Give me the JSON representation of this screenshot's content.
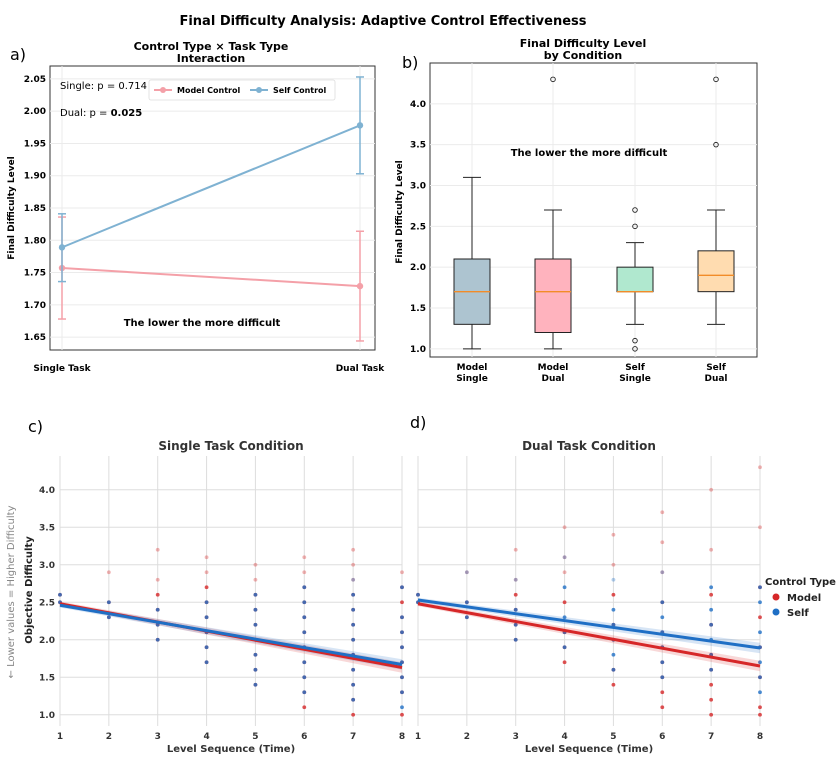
{
  "figure": {
    "title": "Final Difficulty Analysis: Adaptive Control Effectiveness",
    "panel_labels": [
      "a)",
      "b)",
      "c)",
      "d)"
    ]
  },
  "colors": {
    "model_line": "#f4a0a8",
    "self_line": "#7fb2d2",
    "model_scatter": "#d62728",
    "self_scatter": "#1f6fc5",
    "box_model_single": "#adc4d0",
    "box_model_dual": "#ffb3be",
    "box_self_single": "#b0e8cf",
    "box_self_dual": "#ffdcb0",
    "median": "#f28c28"
  },
  "chart_data": [
    {
      "id": "a",
      "type": "line",
      "title": "Control Type × Task Type\nInteraction",
      "xlabel": "",
      "ylabel": "Final Difficulty Level",
      "categories": [
        "Single Task",
        "Dual Task"
      ],
      "ylim": [
        1.63,
        2.07
      ],
      "yticks": [
        1.65,
        1.7,
        1.75,
        1.8,
        1.85,
        1.9,
        1.95,
        2.0,
        2.05
      ],
      "series": [
        {
          "name": "Model Control",
          "values": [
            1.757,
            1.729
          ],
          "err_low": [
            1.678,
            1.644
          ],
          "err_high": [
            1.836,
            1.814
          ]
        },
        {
          "name": "Self Control",
          "values": [
            1.789,
            1.978
          ],
          "err_low": [
            1.736,
            1.903
          ],
          "err_high": [
            1.841,
            2.053
          ]
        }
      ],
      "annotations": {
        "single_p": "Single: p = 0.714",
        "dual_prefix": "Dual: p = ",
        "dual_value": "0.025",
        "note": "The lower the more difficult"
      },
      "legend": "top-center"
    },
    {
      "id": "b",
      "type": "box",
      "title": "Final Difficulty Level\nby Condition",
      "ylabel": "Final Difficulty Level",
      "ylim": [
        0.9,
        4.5
      ],
      "yticks": [
        1.0,
        1.5,
        2.0,
        2.5,
        3.0,
        3.5,
        4.0
      ],
      "categories": [
        "Model\nSingle",
        "Model\nDual",
        "Self\nSingle",
        "Self\nDual"
      ],
      "boxes": [
        {
          "q1": 1.3,
          "median": 1.7,
          "q3": 2.1,
          "whisker_low": 1.0,
          "whisker_high": 3.1,
          "outliers": []
        },
        {
          "q1": 1.2,
          "median": 1.7,
          "q3": 2.1,
          "whisker_low": 1.0,
          "whisker_high": 2.7,
          "outliers": [
            4.3
          ]
        },
        {
          "q1": 1.7,
          "median": 1.7,
          "q3": 2.0,
          "whisker_low": 1.3,
          "whisker_high": 2.3,
          "outliers": [
            2.7,
            2.5,
            1.1,
            1.0
          ]
        },
        {
          "q1": 1.7,
          "median": 1.9,
          "q3": 2.2,
          "whisker_low": 1.3,
          "whisker_high": 2.7,
          "outliers": [
            4.3,
            3.5
          ]
        }
      ],
      "annotation": "The lower the more difficult"
    },
    {
      "id": "c",
      "type": "scatter",
      "title": "Single Task Condition",
      "xlabel": "Level Sequence (Time)",
      "ylabel": "Objective Difficulty",
      "outer_ylabel": "← Lower values = Higher Difficulty",
      "xlim": [
        1,
        8
      ],
      "ylim": [
        0.85,
        4.45
      ],
      "xticks": [
        1,
        2,
        3,
        4,
        5,
        6,
        7,
        8
      ],
      "yticks": [
        1.0,
        1.5,
        2.0,
        2.5,
        3.0,
        3.5,
        4.0
      ],
      "trend": {
        "Model": {
          "start": 2.48,
          "end": 1.63
        },
        "Self": {
          "start": 2.46,
          "end": 1.67
        }
      },
      "points": {
        "Model": [
          [
            1,
            2.6
          ],
          [
            1,
            2.5
          ],
          [
            2,
            2.9
          ],
          [
            2,
            2.5
          ],
          [
            2,
            2.3
          ],
          [
            3,
            3.2
          ],
          [
            3,
            2.8
          ],
          [
            3,
            2.6
          ],
          [
            3,
            2.4
          ],
          [
            3,
            2.2
          ],
          [
            3,
            2.0
          ],
          [
            4,
            3.1
          ],
          [
            4,
            2.9
          ],
          [
            4,
            2.7
          ],
          [
            4,
            2.5
          ],
          [
            4,
            2.3
          ],
          [
            4,
            2.1
          ],
          [
            4,
            1.9
          ],
          [
            4,
            1.7
          ],
          [
            5,
            3.0
          ],
          [
            5,
            2.8
          ],
          [
            5,
            2.6
          ],
          [
            5,
            2.4
          ],
          [
            5,
            2.2
          ],
          [
            5,
            2.0
          ],
          [
            5,
            1.8
          ],
          [
            5,
            1.6
          ],
          [
            5,
            1.4
          ],
          [
            6,
            3.1
          ],
          [
            6,
            2.9
          ],
          [
            6,
            2.7
          ],
          [
            6,
            2.5
          ],
          [
            6,
            2.3
          ],
          [
            6,
            2.1
          ],
          [
            6,
            1.9
          ],
          [
            6,
            1.7
          ],
          [
            6,
            1.5
          ],
          [
            6,
            1.3
          ],
          [
            6,
            1.1
          ],
          [
            7,
            3.2
          ],
          [
            7,
            3.0
          ],
          [
            7,
            2.8
          ],
          [
            7,
            2.6
          ],
          [
            7,
            2.4
          ],
          [
            7,
            2.2
          ],
          [
            7,
            2.0
          ],
          [
            7,
            1.8
          ],
          [
            7,
            1.6
          ],
          [
            7,
            1.4
          ],
          [
            7,
            1.2
          ],
          [
            7,
            1.0
          ],
          [
            8,
            2.9
          ],
          [
            8,
            2.7
          ],
          [
            8,
            2.5
          ],
          [
            8,
            2.3
          ],
          [
            8,
            2.1
          ],
          [
            8,
            1.9
          ],
          [
            8,
            1.7
          ],
          [
            8,
            1.5
          ],
          [
            8,
            1.3
          ],
          [
            8,
            1.0
          ]
        ],
        "Self": [
          [
            1,
            2.6
          ],
          [
            1,
            2.5
          ],
          [
            2,
            2.5
          ],
          [
            2,
            2.3
          ],
          [
            3,
            2.4
          ],
          [
            3,
            2.2
          ],
          [
            3,
            2.0
          ],
          [
            4,
            2.5
          ],
          [
            4,
            2.3
          ],
          [
            4,
            2.1
          ],
          [
            4,
            1.9
          ],
          [
            4,
            1.7
          ],
          [
            5,
            2.6
          ],
          [
            5,
            2.4
          ],
          [
            5,
            2.2
          ],
          [
            5,
            2.0
          ],
          [
            5,
            1.8
          ],
          [
            5,
            1.6
          ],
          [
            5,
            1.4
          ],
          [
            6,
            2.7
          ],
          [
            6,
            2.5
          ],
          [
            6,
            2.3
          ],
          [
            6,
            2.1
          ],
          [
            6,
            1.9
          ],
          [
            6,
            1.7
          ],
          [
            6,
            1.5
          ],
          [
            6,
            1.3
          ],
          [
            7,
            2.8
          ],
          [
            7,
            2.6
          ],
          [
            7,
            2.4
          ],
          [
            7,
            2.2
          ],
          [
            7,
            2.0
          ],
          [
            7,
            1.8
          ],
          [
            7,
            1.6
          ],
          [
            7,
            1.4
          ],
          [
            7,
            1.2
          ],
          [
            8,
            2.7
          ],
          [
            8,
            2.3
          ],
          [
            8,
            2.1
          ],
          [
            8,
            1.9
          ],
          [
            8,
            1.7
          ],
          [
            8,
            1.5
          ],
          [
            8,
            1.3
          ],
          [
            8,
            1.1
          ]
        ]
      }
    },
    {
      "id": "d",
      "type": "scatter",
      "title": "Dual Task Condition",
      "xlabel": "Level Sequence (Time)",
      "ylabel": "",
      "xlim": [
        1,
        8
      ],
      "ylim": [
        0.85,
        4.45
      ],
      "xticks": [
        1,
        2,
        3,
        4,
        5,
        6,
        7,
        8
      ],
      "yticks": [
        1.0,
        1.5,
        2.0,
        2.5,
        3.0,
        3.5,
        4.0
      ],
      "trend": {
        "Model": {
          "start": 2.48,
          "end": 1.65
        },
        "Self": {
          "start": 2.53,
          "end": 1.89
        }
      },
      "points": {
        "Model": [
          [
            1,
            2.6
          ],
          [
            1,
            2.5
          ],
          [
            2,
            2.9
          ],
          [
            2,
            2.5
          ],
          [
            2,
            2.3
          ],
          [
            3,
            3.2
          ],
          [
            3,
            2.8
          ],
          [
            3,
            2.6
          ],
          [
            3,
            2.4
          ],
          [
            3,
            2.2
          ],
          [
            3,
            2.0
          ],
          [
            4,
            3.5
          ],
          [
            4,
            3.1
          ],
          [
            4,
            2.9
          ],
          [
            4,
            2.5
          ],
          [
            4,
            2.1
          ],
          [
            4,
            1.9
          ],
          [
            4,
            1.7
          ],
          [
            5,
            3.4
          ],
          [
            5,
            3.0
          ],
          [
            5,
            2.6
          ],
          [
            5,
            2.2
          ],
          [
            5,
            2.0
          ],
          [
            5,
            1.6
          ],
          [
            5,
            1.4
          ],
          [
            6,
            3.7
          ],
          [
            6,
            3.3
          ],
          [
            6,
            2.9
          ],
          [
            6,
            2.5
          ],
          [
            6,
            2.1
          ],
          [
            6,
            1.9
          ],
          [
            6,
            1.7
          ],
          [
            6,
            1.5
          ],
          [
            6,
            1.3
          ],
          [
            6,
            1.1
          ],
          [
            7,
            4.0
          ],
          [
            7,
            3.2
          ],
          [
            7,
            2.6
          ],
          [
            7,
            2.2
          ],
          [
            7,
            1.8
          ],
          [
            7,
            1.6
          ],
          [
            7,
            1.4
          ],
          [
            7,
            1.2
          ],
          [
            7,
            1.0
          ],
          [
            8,
            4.3
          ],
          [
            8,
            3.5
          ],
          [
            8,
            2.7
          ],
          [
            8,
            2.3
          ],
          [
            8,
            1.9
          ],
          [
            8,
            1.5
          ],
          [
            8,
            1.1
          ],
          [
            8,
            1.0
          ]
        ],
        "Self": [
          [
            1,
            2.6
          ],
          [
            1,
            2.5
          ],
          [
            2,
            2.9
          ],
          [
            2,
            2.5
          ],
          [
            2,
            2.3
          ],
          [
            3,
            2.8
          ],
          [
            3,
            2.4
          ],
          [
            3,
            2.2
          ],
          [
            3,
            2.0
          ],
          [
            4,
            3.1
          ],
          [
            4,
            2.7
          ],
          [
            4,
            2.3
          ],
          [
            4,
            2.1
          ],
          [
            4,
            1.9
          ],
          [
            5,
            2.8
          ],
          [
            5,
            2.4
          ],
          [
            5,
            2.2
          ],
          [
            5,
            2.0
          ],
          [
            5,
            1.8
          ],
          [
            5,
            1.6
          ],
          [
            6,
            2.9
          ],
          [
            6,
            2.5
          ],
          [
            6,
            2.3
          ],
          [
            6,
            2.1
          ],
          [
            6,
            1.9
          ],
          [
            6,
            1.7
          ],
          [
            6,
            1.5
          ],
          [
            7,
            2.7
          ],
          [
            7,
            2.4
          ],
          [
            7,
            2.2
          ],
          [
            7,
            2.0
          ],
          [
            7,
            1.8
          ],
          [
            7,
            1.6
          ],
          [
            8,
            2.7
          ],
          [
            8,
            2.5
          ],
          [
            8,
            2.1
          ],
          [
            8,
            1.9
          ],
          [
            8,
            1.7
          ],
          [
            8,
            1.5
          ],
          [
            8,
            1.3
          ]
        ]
      }
    }
  ],
  "scatter_legend": {
    "title": "Control Type",
    "items": [
      "Model",
      "Self"
    ]
  }
}
